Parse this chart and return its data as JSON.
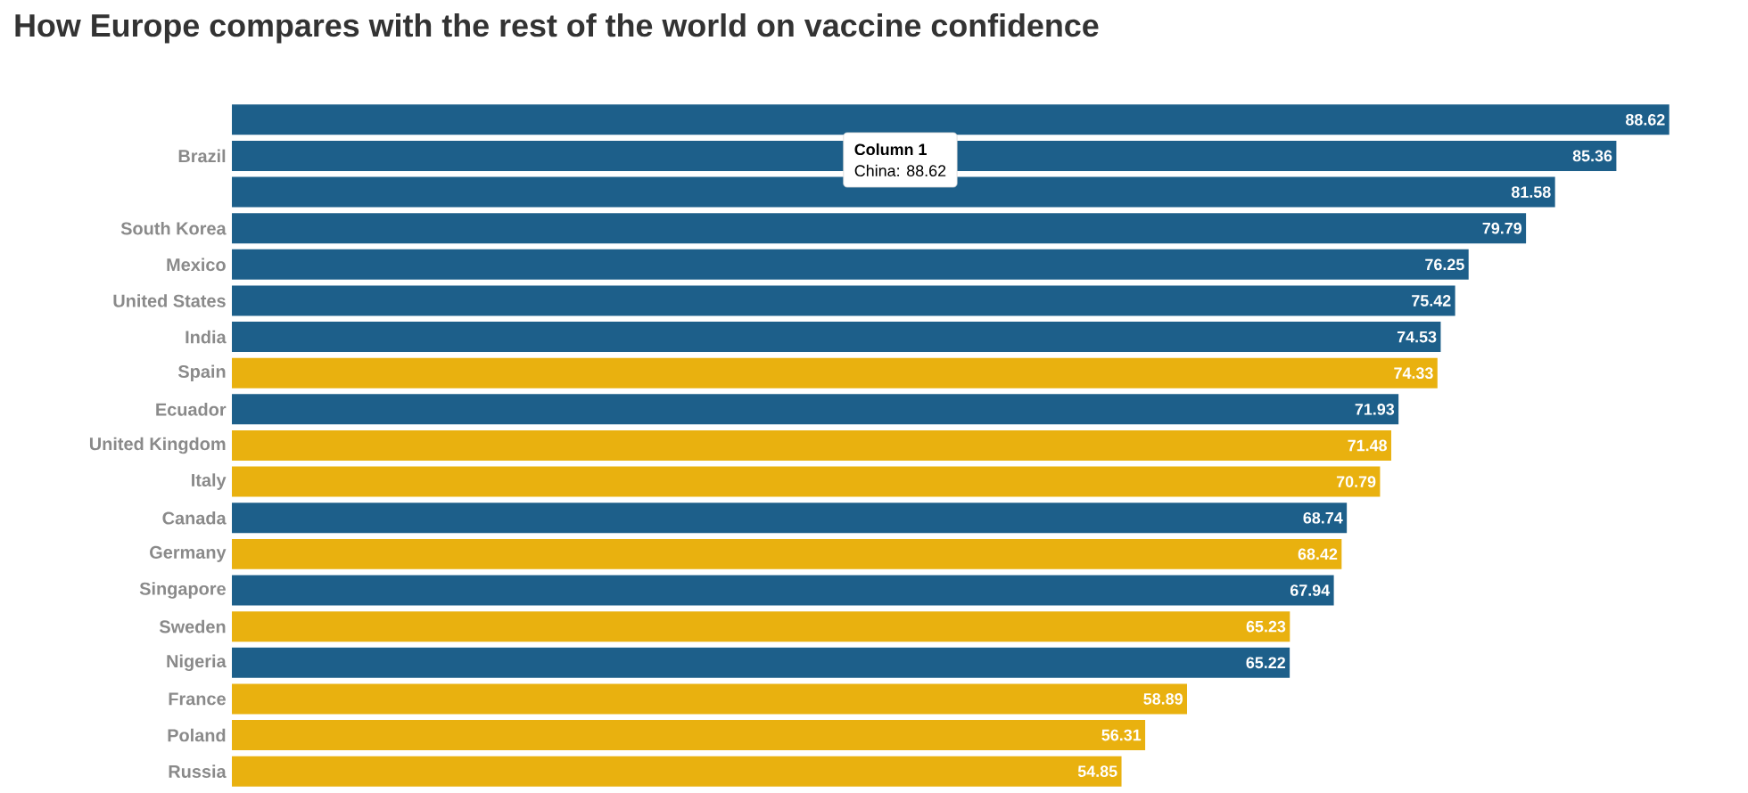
{
  "chart_data": {
    "type": "bar",
    "orientation": "horizontal",
    "title": "How Europe compares with the rest of the world on vaccine confidence",
    "categories": [
      null,
      "Brazil",
      null,
      "South Korea",
      "Mexico",
      "United States",
      "India",
      "Spain",
      "Ecuador",
      "United Kingdom",
      "Italy",
      "Canada",
      "Germany",
      "Singapore",
      "Sweden",
      "Nigeria",
      "France",
      "Poland",
      "Russia"
    ],
    "values": [
      88.62,
      85.36,
      81.58,
      79.79,
      76.25,
      75.42,
      74.53,
      74.33,
      71.93,
      71.48,
      70.79,
      68.74,
      68.42,
      67.94,
      65.23,
      65.22,
      58.89,
      56.31,
      54.85
    ],
    "colors": [
      "#1d5f8a",
      "#1d5f8a",
      "#1d5f8a",
      "#1d5f8a",
      "#1d5f8a",
      "#1d5f8a",
      "#1d5f8a",
      "#e9b10f",
      "#1d5f8a",
      "#e9b10f",
      "#e9b10f",
      "#1d5f8a",
      "#e9b10f",
      "#1d5f8a",
      "#e9b10f",
      "#1d5f8a",
      "#e9b10f",
      "#e9b10f",
      "#e9b10f"
    ],
    "data_labels": true,
    "annotations": [
      "Column 1",
      "China: 88.62"
    ]
  }
}
